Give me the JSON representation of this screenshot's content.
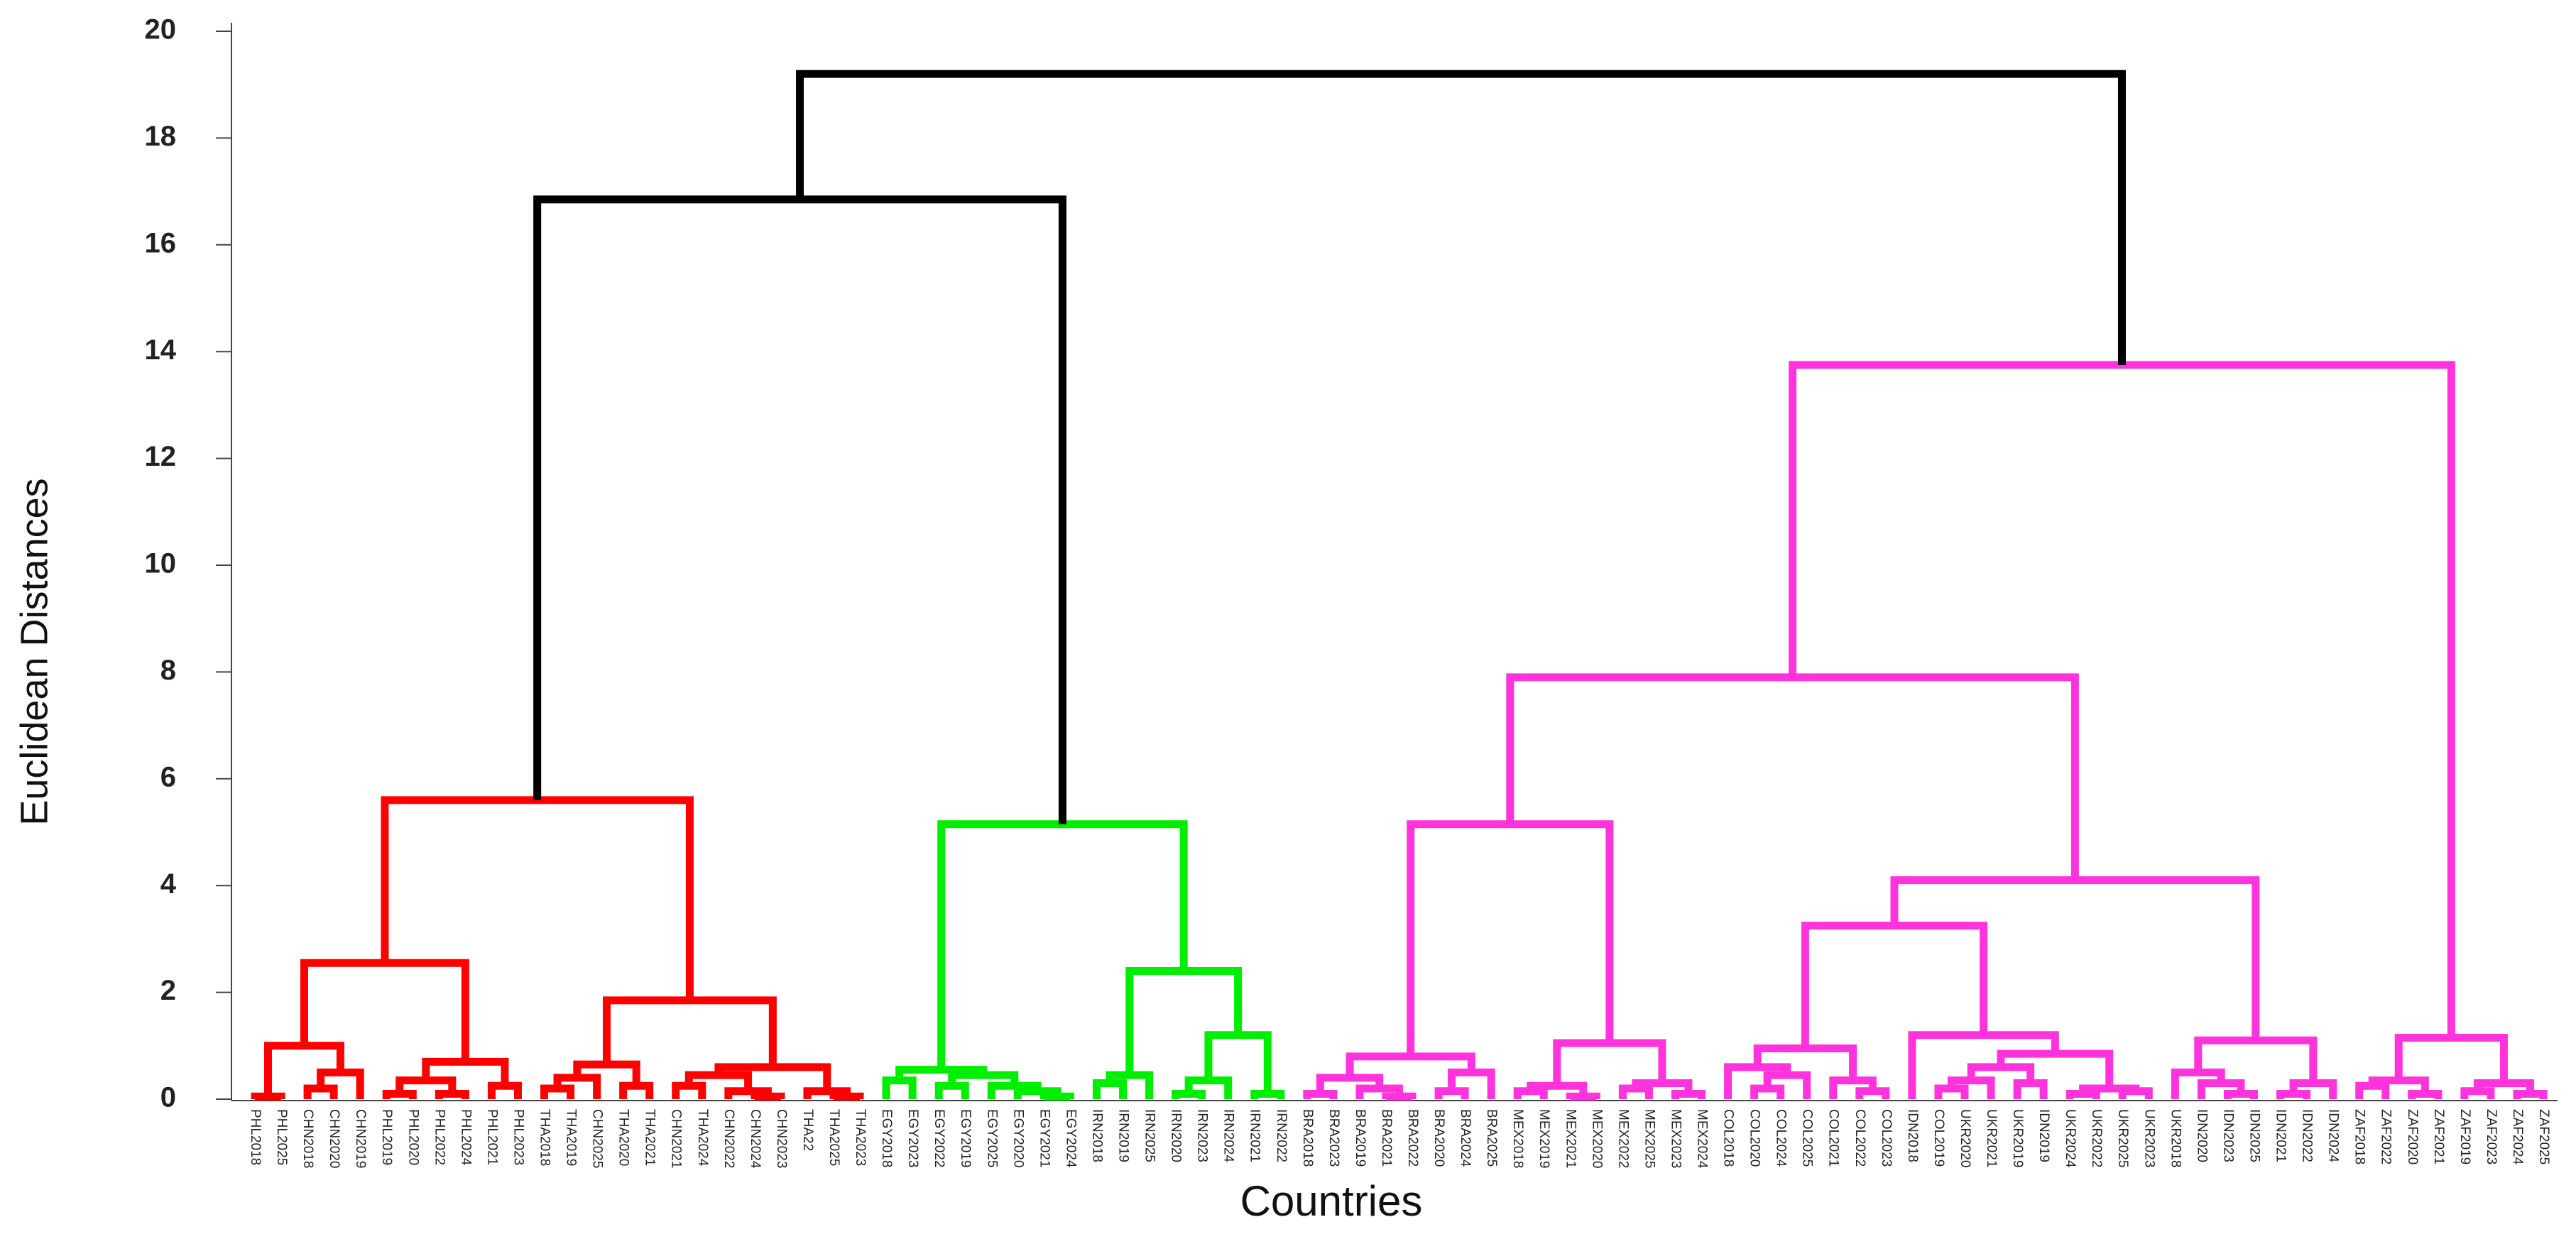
{
  "chart_data": {
    "type": "dendrogram",
    "x_label": "Countries",
    "y_label": "Euclidean Distances",
    "ylim": [
      0,
      20
    ],
    "yticks": [
      0,
      2,
      4,
      6,
      8,
      10,
      12,
      14,
      16,
      18,
      20
    ],
    "tree": {
      "height": 19.2,
      "color": "#000000",
      "children": [
        {
          "height": 16.85,
          "children": [
            {
              "height": 5.6,
              "color": "#ff0000",
              "children": [
                {
                  "height": 2.55,
                  "children": [
                    {
                      "height": 1.0,
                      "children": [
                        {
                          "height": 0.05,
                          "children": [
                            "PHL2018",
                            "PHL2025"
                          ]
                        },
                        {
                          "height": 0.5,
                          "children": [
                            {
                              "height": 0.2,
                              "children": [
                                "CHN2018",
                                "CHN2020"
                              ]
                            },
                            "CHN2019"
                          ]
                        }
                      ]
                    },
                    {
                      "height": 0.7,
                      "children": [
                        {
                          "height": 0.35,
                          "children": [
                            {
                              "height": 0.1,
                              "children": [
                                "PHL2019",
                                "PHL2020"
                              ]
                            },
                            {
                              "height": 0.1,
                              "children": [
                                "PHL2022",
                                "PHL2024"
                              ]
                            }
                          ]
                        },
                        {
                          "height": 0.25,
                          "children": [
                            "PHL2021",
                            "PHL2023"
                          ]
                        }
                      ]
                    }
                  ]
                },
                {
                  "height": 1.85,
                  "children": [
                    {
                      "height": 0.65,
                      "children": [
                        {
                          "height": 0.4,
                          "children": [
                            {
                              "height": 0.2,
                              "children": [
                                "THA2018",
                                "THA2019"
                              ]
                            },
                            "CHN2025"
                          ]
                        },
                        {
                          "height": 0.25,
                          "children": [
                            "THA2020",
                            "THA2021"
                          ]
                        }
                      ]
                    },
                    {
                      "height": 0.6,
                      "children": [
                        {
                          "height": 0.45,
                          "children": [
                            {
                              "height": 0.25,
                              "children": [
                                "CHN2021",
                                "THA2024"
                              ]
                            },
                            {
                              "height": 0.15,
                              "children": [
                                "CHN2022",
                                {
                                  "height": 0.05,
                                  "children": [
                                    "CHN2024",
                                    "CHN2023"
                                  ]
                                }
                              ]
                            }
                          ]
                        },
                        {
                          "height": 0.15,
                          "children": [
                            "THA22",
                            {
                              "height": 0.05,
                              "children": [
                                "THA2025",
                                "THA2023"
                              ]
                            }
                          ]
                        }
                      ]
                    }
                  ]
                }
              ]
            },
            {
              "height": 5.15,
              "color": "#00ee00",
              "children": [
                {
                  "height": 0.55,
                  "children": [
                    {
                      "height": 0.35,
                      "children": [
                        "EGY2018",
                        "EGY2023"
                      ]
                    },
                    {
                      "height": 0.45,
                      "children": [
                        {
                          "height": 0.25,
                          "children": [
                            "EGY2022",
                            "EGY2019"
                          ]
                        },
                        {
                          "height": 0.25,
                          "children": [
                            "EGY2025",
                            {
                              "height": 0.15,
                              "children": [
                                "EGY2020",
                                {
                                  "height": 0.05,
                                  "children": [
                                    "EGY2021",
                                    "EGY2024"
                                  ]
                                }
                              ]
                            }
                          ]
                        }
                      ]
                    }
                  ]
                },
                {
                  "height": 2.4,
                  "children": [
                    {
                      "height": 0.45,
                      "children": [
                        {
                          "height": 0.3,
                          "children": [
                            "IRN2018",
                            "IRN2019"
                          ]
                        },
                        "IRN2025"
                      ]
                    },
                    {
                      "height": 1.2,
                      "children": [
                        {
                          "height": 0.35,
                          "children": [
                            {
                              "height": 0.1,
                              "children": [
                                "IRN2020",
                                "IRN2023"
                              ]
                            },
                            "IRN2024"
                          ]
                        },
                        {
                          "height": 0.1,
                          "children": [
                            "IRN2021",
                            "IRN2022"
                          ]
                        }
                      ]
                    }
                  ]
                }
              ]
            }
          ]
        },
        {
          "height": 13.75,
          "color": "#ff33dd",
          "children": [
            {
              "height": 7.9,
              "children": [
                {
                  "height": 5.15,
                  "children": [
                    {
                      "height": 0.8,
                      "children": [
                        {
                          "height": 0.4,
                          "children": [
                            {
                              "height": 0.1,
                              "children": [
                                "BRA2018",
                                "BRA2023"
                              ]
                            },
                            {
                              "height": 0.2,
                              "children": [
                                "BRA2019",
                                {
                                  "height": 0.05,
                                  "children": [
                                    "BRA2021",
                                    "BRA2022"
                                  ]
                                }
                              ]
                            }
                          ]
                        },
                        {
                          "height": 0.5,
                          "children": [
                            {
                              "height": 0.15,
                              "children": [
                                "BRA2020",
                                "BRA2024"
                              ]
                            },
                            "BRA2025"
                          ]
                        }
                      ]
                    },
                    {
                      "height": 1.05,
                      "children": [
                        {
                          "height": 0.25,
                          "children": [
                            {
                              "height": 0.15,
                              "children": [
                                "MEX2018",
                                "MEX2019"
                              ]
                            },
                            {
                              "height": 0.05,
                              "children": [
                                "MEX2021",
                                "MEX2020"
                              ]
                            }
                          ]
                        },
                        {
                          "height": 0.3,
                          "children": [
                            {
                              "height": 0.2,
                              "children": [
                                "MEX2022",
                                "MEX2025"
                              ]
                            },
                            {
                              "height": 0.1,
                              "children": [
                                "MEX2023",
                                "MEX2024"
                              ]
                            }
                          ]
                        }
                      ]
                    }
                  ]
                },
                {
                  "height": 4.1,
                  "children": [
                    {
                      "height": 3.25,
                      "children": [
                        {
                          "height": 0.95,
                          "children": [
                            {
                              "height": 0.6,
                              "children": [
                                "COL2018",
                                {
                                  "height": 0.45,
                                  "children": [
                                    {
                                      "height": 0.2,
                                      "children": [
                                        "COL2020",
                                        "COL2024"
                                      ]
                                    },
                                    "COL2025"
                                  ]
                                }
                              ]
                            },
                            {
                              "height": 0.35,
                              "children": [
                                "COL2021",
                                {
                                  "height": 0.15,
                                  "children": [
                                    "COL2022",
                                    "COL2023"
                                  ]
                                }
                              ]
                            }
                          ]
                        },
                        {
                          "height": 1.2,
                          "children": [
                            "IDN2018",
                            {
                              "height": 0.85,
                              "children": [
                                {
                                  "height": 0.6,
                                  "children": [
                                    {
                                      "height": 0.35,
                                      "children": [
                                        {
                                          "height": 0.2,
                                          "children": [
                                            "COL2019",
                                            "UKR2020"
                                          ]
                                        },
                                        "UKR2021"
                                      ]
                                    },
                                    {
                                      "height": 0.3,
                                      "children": [
                                        "UKR2019",
                                        "IDN2019"
                                      ]
                                    }
                                  ]
                                },
                                {
                                  "height": 0.2,
                                  "children": [
                                    {
                                      "height": 0.1,
                                      "children": [
                                        "UKR2024",
                                        "UKR2022"
                                      ]
                                    },
                                    {
                                      "height": 0.15,
                                      "children": [
                                        "UKR2025",
                                        "UKR2023"
                                      ]
                                    }
                                  ]
                                }
                              ]
                            }
                          ]
                        }
                      ]
                    },
                    {
                      "height": 1.1,
                      "children": [
                        {
                          "height": 0.5,
                          "children": [
                            "UKR2018",
                            {
                              "height": 0.3,
                              "children": [
                                "IDN2020",
                                {
                                  "height": 0.1,
                                  "children": [
                                    "IDN2023",
                                    "IDN2025"
                                  ]
                                }
                              ]
                            }
                          ]
                        },
                        {
                          "height": 0.3,
                          "children": [
                            {
                              "height": 0.1,
                              "children": [
                                "IDN2021",
                                "IDN2022"
                              ]
                            },
                            "IDN2024"
                          ]
                        }
                      ]
                    }
                  ]
                }
              ]
            },
            {
              "height": 1.15,
              "children": [
                {
                  "height": 0.35,
                  "children": [
                    {
                      "height": 0.25,
                      "children": [
                        "ZAF2018",
                        "ZAF2022"
                      ]
                    },
                    {
                      "height": 0.1,
                      "children": [
                        "ZAF2020",
                        "ZAF2021"
                      ]
                    }
                  ]
                },
                {
                  "height": 0.3,
                  "children": [
                    {
                      "height": 0.15,
                      "children": [
                        "ZAF2019",
                        "ZAF2023"
                      ]
                    },
                    {
                      "height": 0.1,
                      "children": [
                        "ZAF2024",
                        "ZAF2025"
                      ]
                    }
                  ]
                }
              ]
            }
          ]
        }
      ]
    }
  }
}
